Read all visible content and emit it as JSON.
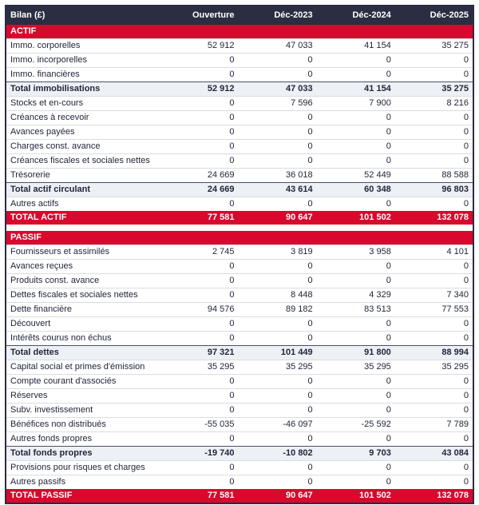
{
  "chart_data": {
    "type": "table",
    "title": "Bilan (£)",
    "columns": [
      "Bilan (£)",
      "Ouverture",
      "Déc-2023",
      "Déc-2024",
      "Déc-2025"
    ],
    "sections": [
      {
        "name": "ACTIF",
        "rows": [
          {
            "label": "Immo. corporelles",
            "kind": "item",
            "values": [
              "52 912",
              "47 033",
              "41 154",
              "35 275"
            ]
          },
          {
            "label": "Immo. incorporelles",
            "kind": "item",
            "values": [
              "0",
              "0",
              "0",
              "0"
            ]
          },
          {
            "label": "Immo. financières",
            "kind": "item",
            "values": [
              "0",
              "0",
              "0",
              "0"
            ]
          },
          {
            "label": "Total immobilisations",
            "kind": "subtotal",
            "values": [
              "52 912",
              "47 033",
              "41 154",
              "35 275"
            ]
          },
          {
            "label": "Stocks et en-cours",
            "kind": "item",
            "values": [
              "0",
              "7 596",
              "7 900",
              "8 216"
            ]
          },
          {
            "label": "Créances à recevoir",
            "kind": "item",
            "values": [
              "0",
              "0",
              "0",
              "0"
            ]
          },
          {
            "label": "Avances payées",
            "kind": "item",
            "values": [
              "0",
              "0",
              "0",
              "0"
            ]
          },
          {
            "label": "Charges const. avance",
            "kind": "item",
            "values": [
              "0",
              "0",
              "0",
              "0"
            ]
          },
          {
            "label": "Créances fiscales et sociales nettes",
            "kind": "item",
            "values": [
              "0",
              "0",
              "0",
              "0"
            ]
          },
          {
            "label": "Trésorerie",
            "kind": "item",
            "values": [
              "24 669",
              "36 018",
              "52 449",
              "88 588"
            ]
          },
          {
            "label": "Total actif circulant",
            "kind": "subtotal",
            "values": [
              "24 669",
              "43 614",
              "60 348",
              "96 803"
            ]
          },
          {
            "label": "Autres actifs",
            "kind": "item",
            "values": [
              "0",
              "0",
              "0",
              "0"
            ]
          }
        ],
        "total": {
          "label": "TOTAL ACTIF",
          "values": [
            "77 581",
            "90 647",
            "101 502",
            "132 078"
          ]
        }
      },
      {
        "name": "PASSIF",
        "rows": [
          {
            "label": "Fournisseurs et assimilés",
            "kind": "item",
            "values": [
              "2 745",
              "3 819",
              "3 958",
              "4 101"
            ]
          },
          {
            "label": "Avances reçues",
            "kind": "item",
            "values": [
              "0",
              "0",
              "0",
              "0"
            ]
          },
          {
            "label": "Produits const. avance",
            "kind": "item",
            "values": [
              "0",
              "0",
              "0",
              "0"
            ]
          },
          {
            "label": "Dettes fiscales et sociales nettes",
            "kind": "item",
            "values": [
              "0",
              "8 448",
              "4 329",
              "7 340"
            ]
          },
          {
            "label": "Dette financière",
            "kind": "item",
            "values": [
              "94 576",
              "89 182",
              "83 513",
              "77 553"
            ]
          },
          {
            "label": "Découvert",
            "kind": "item",
            "values": [
              "0",
              "0",
              "0",
              "0"
            ]
          },
          {
            "label": "Intérêts courus non échus",
            "kind": "item",
            "values": [
              "0",
              "0",
              "0",
              "0"
            ]
          },
          {
            "label": "Total dettes",
            "kind": "subtotal",
            "values": [
              "97 321",
              "101 449",
              "91 800",
              "88 994"
            ]
          },
          {
            "label": "Capital social et primes d'émission",
            "kind": "item",
            "values": [
              "35 295",
              "35 295",
              "35 295",
              "35 295"
            ]
          },
          {
            "label": "Compte courant d'associés",
            "kind": "item",
            "values": [
              "0",
              "0",
              "0",
              "0"
            ]
          },
          {
            "label": "Réserves",
            "kind": "item",
            "values": [
              "0",
              "0",
              "0",
              "0"
            ]
          },
          {
            "label": "Subv. investissement",
            "kind": "item",
            "values": [
              "0",
              "0",
              "0",
              "0"
            ]
          },
          {
            "label": "Bénéfices non distribués",
            "kind": "item",
            "values": [
              "-55 035",
              "-46 097",
              "-25 592",
              "7 789"
            ]
          },
          {
            "label": "Autres fonds propres",
            "kind": "item",
            "values": [
              "0",
              "0",
              "0",
              "0"
            ]
          },
          {
            "label": "Total fonds propres",
            "kind": "subtotal",
            "values": [
              "-19 740",
              "-10 802",
              "9 703",
              "43 084"
            ]
          },
          {
            "label": "Provisions pour risques et charges",
            "kind": "item",
            "values": [
              "0",
              "0",
              "0",
              "0"
            ]
          },
          {
            "label": "Autres passifs",
            "kind": "item",
            "values": [
              "0",
              "0",
              "0",
              "0"
            ]
          }
        ],
        "total": {
          "label": "TOTAL PASSIF",
          "values": [
            "77 581",
            "90 647",
            "101 502",
            "132 078"
          ]
        }
      }
    ],
    "layout": {
      "first_column_align": "left",
      "value_columns_align": "right",
      "currency": "£"
    }
  },
  "colors": {
    "header_bg": "#2b2d42",
    "header_text": "#ffffff",
    "section_bg": "#d9082d",
    "section_text": "#ffffff",
    "subtotal_bg": "#edf1f5",
    "row_border": "#d9dce1",
    "body_text": "#23263a"
  }
}
